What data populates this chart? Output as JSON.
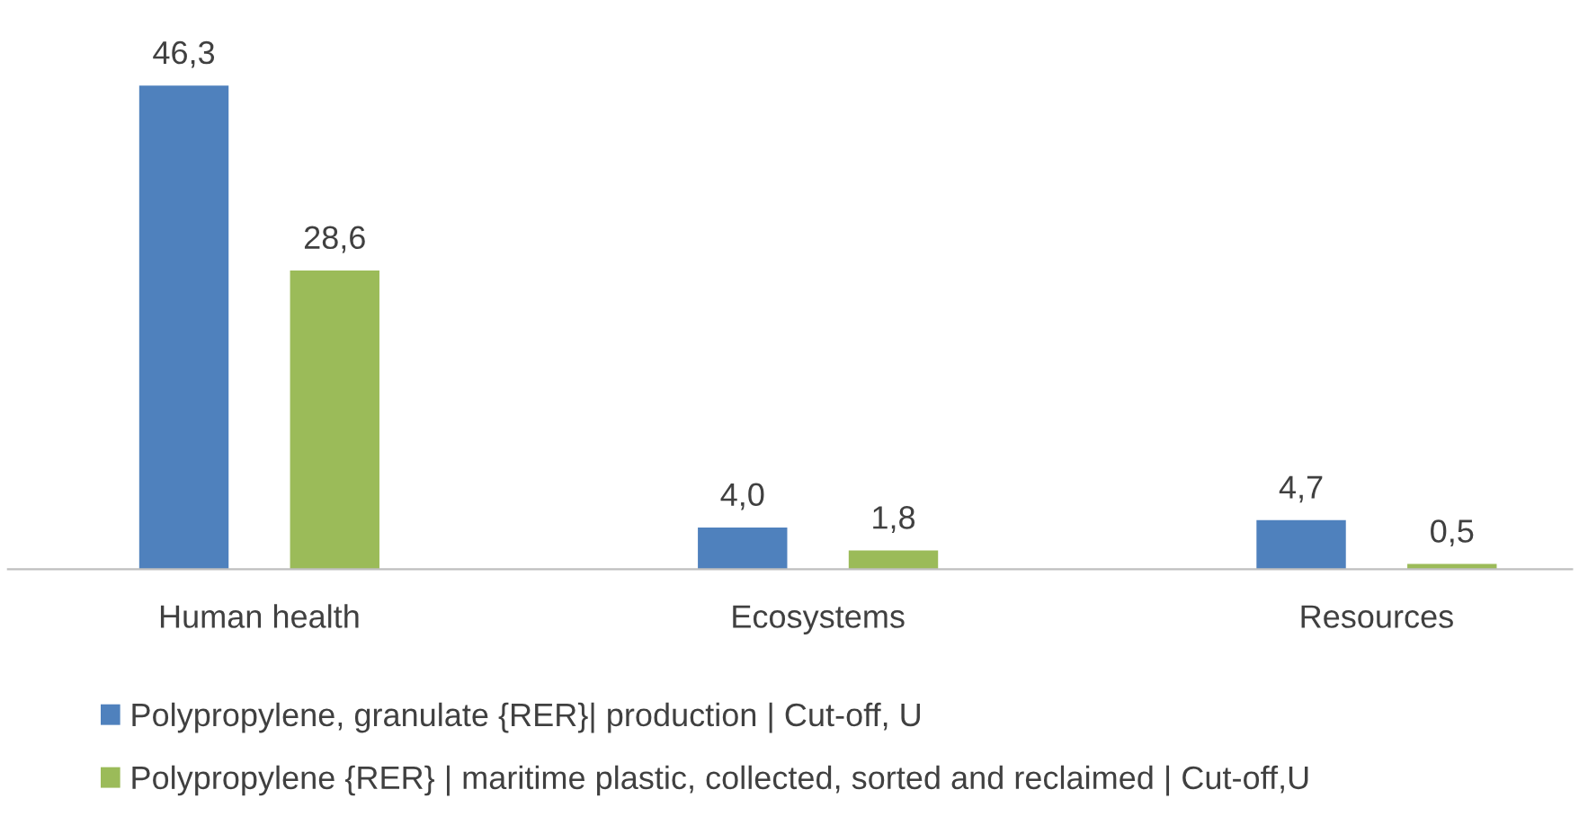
{
  "chart_data": {
    "type": "bar",
    "categories": [
      "Human health",
      "Ecosystems",
      "Resources"
    ],
    "series": [
      {
        "name": "Polypropylene, granulate {RER}| production | Cut-off, U",
        "color": "#4f81bd",
        "values": [
          46.3,
          4.0,
          4.7
        ],
        "value_labels": [
          "46,3",
          "4,0",
          "4,7"
        ]
      },
      {
        "name": "Polypropylene {RER} | maritime plastic, collected, sorted and reclaimed | Cut-off,U",
        "color": "#9bbb59",
        "values": [
          28.6,
          1.8,
          0.5
        ],
        "value_labels": [
          "28,6",
          "1,8",
          "0,5"
        ]
      }
    ],
    "legend": "bottom",
    "grid": false
  }
}
